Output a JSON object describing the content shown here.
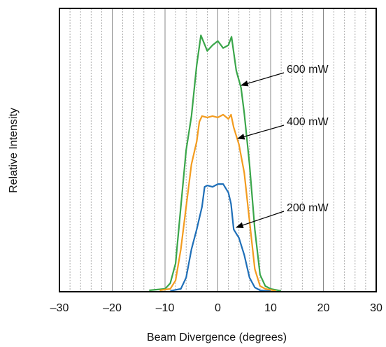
{
  "chart_data": {
    "type": "line",
    "x_label": "Beam Divergence (degrees)",
    "y_label": "Relative Intensity",
    "xlim": [
      -30,
      30
    ],
    "ylim": [
      0,
      1
    ],
    "xticks": [
      {
        "value": -30,
        "label": "–30"
      },
      {
        "value": -20,
        "label": "–20"
      },
      {
        "value": -10,
        "label": "–10"
      },
      0,
      10,
      20,
      30
    ],
    "xminorticks": [
      -28,
      -26,
      -24,
      -22,
      -18,
      -16,
      -14,
      -12,
      -8,
      -6,
      -4,
      -2,
      2,
      4,
      6,
      8,
      12,
      14,
      16,
      18,
      22,
      24,
      26,
      28
    ],
    "grid": true,
    "series": [
      {
        "name": "600 mW",
        "color": "#3aa64a",
        "x": [
          -13,
          -10,
          -9,
          -8,
          -7,
          -6,
          -5,
          -4,
          -3.2,
          -2,
          -1,
          0,
          1,
          2,
          2.6,
          3.5,
          4.4,
          5,
          6,
          7,
          8,
          9,
          10,
          12
        ],
        "values": [
          0.005,
          0.01,
          0.03,
          0.1,
          0.3,
          0.5,
          0.62,
          0.8,
          0.905,
          0.85,
          0.87,
          0.885,
          0.86,
          0.87,
          0.9,
          0.78,
          0.72,
          0.63,
          0.45,
          0.22,
          0.06,
          0.02,
          0.01,
          0.003
        ]
      },
      {
        "name": "400 mW",
        "color": "#f39c1f",
        "x": [
          -11,
          -9,
          -8,
          -7,
          -6,
          -5,
          -4,
          -3.5,
          -3,
          -2,
          -1,
          0,
          1,
          2,
          2.5,
          3,
          4,
          5,
          6,
          7,
          8,
          9,
          11
        ],
        "values": [
          0.005,
          0.01,
          0.04,
          0.15,
          0.3,
          0.45,
          0.53,
          0.6,
          0.62,
          0.615,
          0.62,
          0.615,
          0.625,
          0.61,
          0.625,
          0.58,
          0.52,
          0.42,
          0.25,
          0.08,
          0.02,
          0.01,
          0.003
        ]
      },
      {
        "name": "200 mW",
        "color": "#1f6fb8",
        "x": [
          -9,
          -7,
          -6,
          -5,
          -4,
          -3,
          -2.5,
          -2,
          -1,
          0,
          1,
          2,
          2.5,
          3,
          4,
          5,
          6,
          7,
          8,
          10
        ],
        "values": [
          0.003,
          0.01,
          0.05,
          0.15,
          0.22,
          0.3,
          0.37,
          0.375,
          0.37,
          0.38,
          0.38,
          0.35,
          0.31,
          0.22,
          0.19,
          0.13,
          0.05,
          0.015,
          0.005,
          0.002
        ]
      }
    ]
  }
}
